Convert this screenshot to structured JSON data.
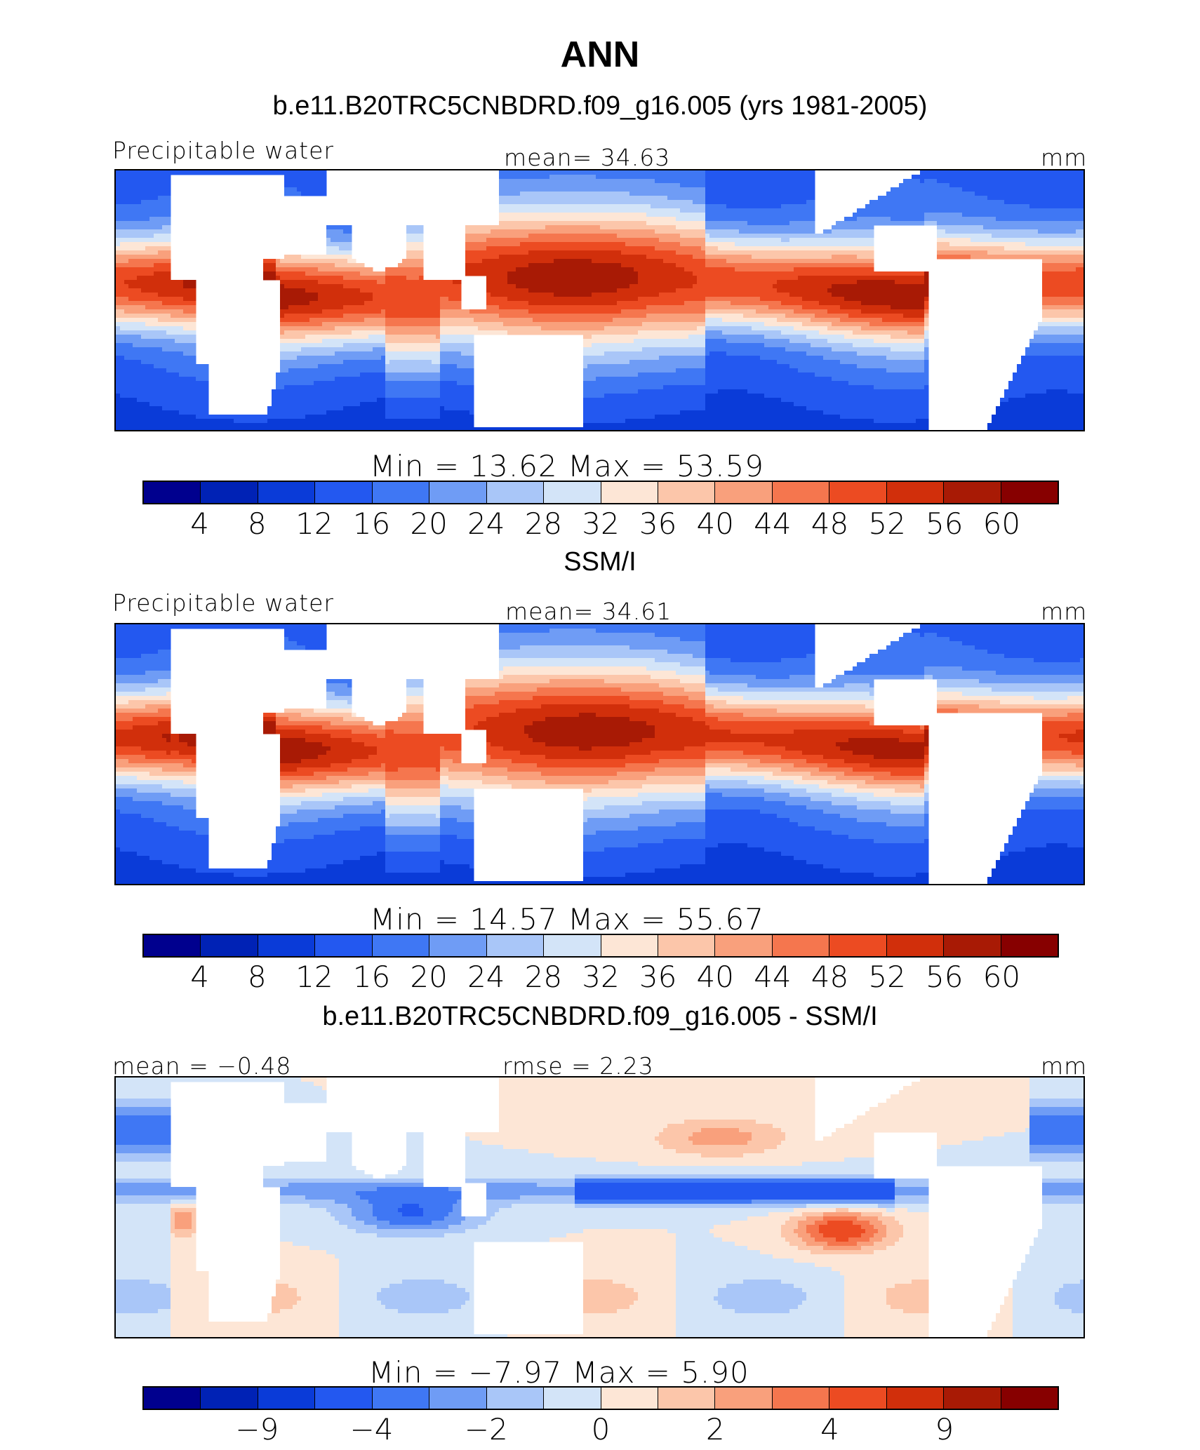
{
  "header": {
    "season": "ANN",
    "model_title": "b.e11.B20TRC5CNBDRD.f09_g16.005 (yrs 1981-2005)"
  },
  "panels": [
    {
      "id": "model",
      "variable": "Precipitable water",
      "stat_left": "",
      "stat_center": "mean=   34.63",
      "units": "mm",
      "minmax": "Min  =    13.62  Max  =    53.59",
      "after_title": "SSM/I"
    },
    {
      "id": "obs",
      "variable": "Precipitable water",
      "stat_left": "",
      "stat_center": "mean=   34.61",
      "units": "mm",
      "minmax": "Min  =    14.57  Max  =    55.67",
      "after_title": "b.e11.B20TRC5CNBDRD.f09_g16.005 - SSM/I"
    },
    {
      "id": "diff",
      "variable": "",
      "stat_left": "mean =  −0.48",
      "stat_center": "rmse =     2.23",
      "units": "mm",
      "minmax": "Min  =   −7.97  Max  =     5.90",
      "after_title": ""
    }
  ],
  "colorbar": {
    "colors": [
      "#00008e",
      "#0022b5",
      "#0a3bd8",
      "#2358f0",
      "#3f77f4",
      "#6f9cf5",
      "#a9c6f8",
      "#d3e4f8",
      "#fde6d6",
      "#fcc6aa",
      "#f9a07c",
      "#f5764e",
      "#ec4b22",
      "#d12f0b",
      "#a81a05",
      "#870000"
    ],
    "ticks_abs": [
      "4",
      "8",
      "12",
      "16",
      "20",
      "24",
      "28",
      "32",
      "36",
      "40",
      "44",
      "48",
      "52",
      "56",
      "60"
    ],
    "ticks_diff": [
      "−9",
      "−4",
      "−2",
      "0",
      "2",
      "4",
      "9"
    ]
  },
  "map_colors": {
    "land": "#ffffff",
    "coast": "#000000"
  }
}
